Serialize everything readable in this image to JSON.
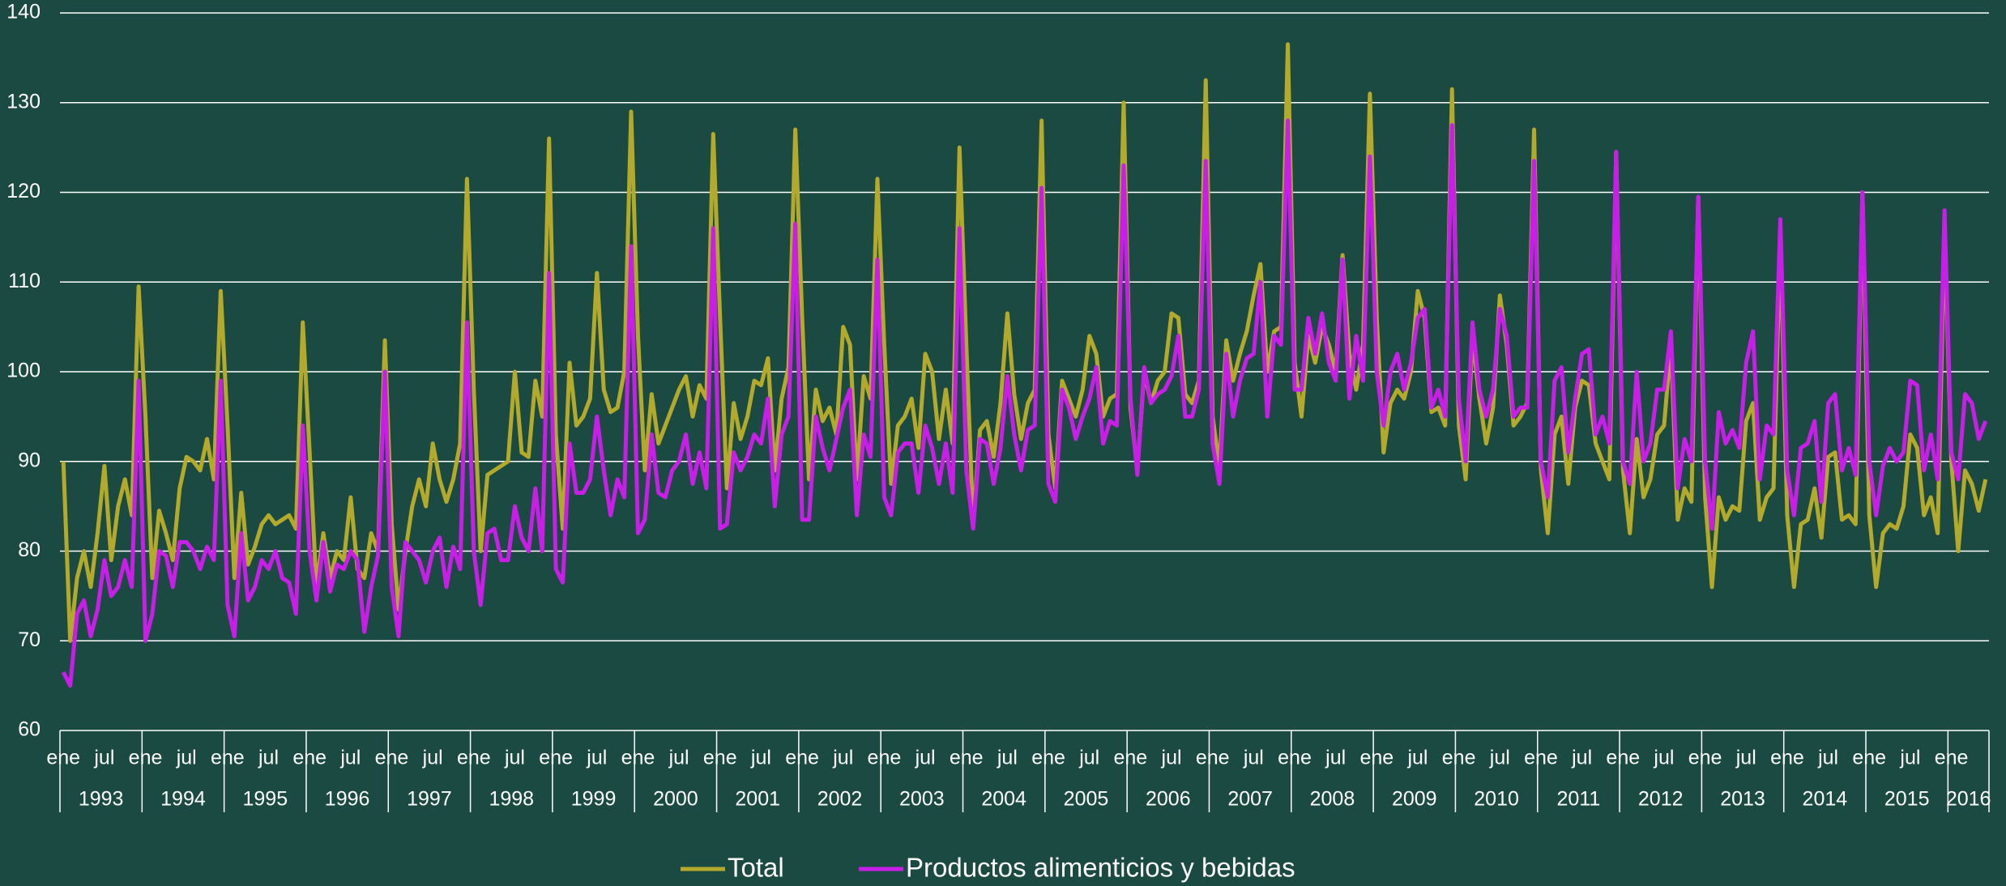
{
  "chart_data": {
    "type": "line",
    "categories": [
      "ene",
      null,
      null,
      null,
      null,
      null,
      "jul",
      null,
      null,
      null,
      null,
      null,
      "ene",
      null,
      null,
      null,
      null,
      null,
      "jul",
      null,
      null,
      null,
      null,
      null,
      "ene",
      null,
      null,
      null,
      null,
      null,
      "jul",
      null,
      null,
      null,
      null,
      null,
      "ene",
      null,
      null,
      null,
      null,
      null,
      "jul",
      null,
      null,
      null,
      null,
      null,
      "ene",
      null,
      null,
      null,
      null,
      null,
      "jul",
      null,
      null,
      null,
      null,
      null,
      "ene",
      null,
      null,
      null,
      null,
      null,
      "jul",
      null,
      null,
      null,
      null,
      null,
      "ene",
      null,
      null,
      null,
      null,
      null,
      "jul",
      null,
      null,
      null,
      null,
      null,
      "ene",
      null,
      null,
      null,
      null,
      null,
      "jul",
      null,
      null,
      null,
      null,
      null,
      "ene",
      null,
      null,
      null,
      null,
      null,
      "jul",
      null,
      null,
      null,
      null,
      null,
      "ene",
      null,
      null,
      null,
      null,
      null,
      "jul",
      null,
      null,
      null,
      null,
      null,
      "ene",
      null,
      null,
      null,
      null,
      null,
      "jul",
      null,
      null,
      null,
      null,
      null,
      "ene",
      null,
      null,
      null,
      null,
      null,
      "jul",
      null,
      null,
      null,
      null,
      null,
      "ene",
      null,
      null,
      null,
      null,
      null,
      "jul",
      null,
      null,
      null,
      null,
      null,
      "ene",
      null,
      null,
      null,
      null,
      null,
      "jul",
      null,
      null,
      null,
      null,
      null,
      "ene",
      null,
      null,
      null,
      null,
      null,
      "jul",
      null,
      null,
      null,
      null,
      null,
      "ene",
      null,
      null,
      null,
      null,
      null,
      "jul",
      null,
      null,
      null,
      null,
      null,
      "ene",
      null,
      null,
      null,
      null,
      null,
      "jul",
      null,
      null,
      null,
      null,
      null,
      "ene",
      null,
      null,
      null,
      null,
      null,
      "jul",
      null,
      null,
      null,
      null,
      null,
      "ene",
      null,
      null,
      null,
      null,
      null,
      "jul",
      null,
      null,
      null,
      null,
      null,
      "ene",
      null,
      null,
      null,
      null,
      null,
      "jul",
      null,
      null,
      null,
      null,
      null,
      "ene",
      null,
      null,
      null,
      null,
      null,
      "jul",
      null,
      null,
      null,
      null,
      null,
      "ene",
      null,
      null,
      null,
      null,
      null,
      "jul",
      null,
      null,
      null,
      null,
      null,
      "ene",
      null,
      null,
      null,
      null,
      null,
      "jul",
      null,
      null,
      null,
      null,
      null,
      "ene",
      null,
      null,
      null,
      null,
      null
    ],
    "year_labels": [
      "1993",
      "1994",
      "1995",
      "1996",
      "1997",
      "1998",
      "1999",
      "2000",
      "2001",
      "2002",
      "2003",
      "2004",
      "2005",
      "2006",
      "2007",
      "2008",
      "2009",
      "2010",
      "2011",
      "2012",
      "2013",
      "2014",
      "2015",
      "2016"
    ],
    "series": [
      {
        "name": "Total",
        "color": "#b3a92b",
        "values": [
          90,
          70,
          77,
          80,
          76,
          82,
          89.5,
          79,
          85,
          88,
          84,
          109.5,
          95,
          77,
          84.5,
          82,
          79,
          87,
          90.5,
          90,
          89,
          92.5,
          88,
          109,
          94,
          77,
          86.5,
          78.5,
          80.5,
          83,
          84,
          83,
          83.5,
          84,
          82.5,
          105.5,
          91,
          76,
          82,
          77,
          80,
          79,
          86,
          78,
          77,
          82,
          80,
          103.5,
          83,
          73.5,
          80,
          85,
          88,
          85,
          92,
          88,
          85.5,
          88,
          92,
          121.5,
          98,
          80,
          88.5,
          89,
          89.5,
          90,
          100,
          91,
          90.5,
          99,
          95,
          126,
          93,
          82.5,
          101,
          94,
          95,
          97,
          111,
          98,
          95.5,
          96,
          100,
          129,
          104,
          89,
          97.5,
          92,
          94,
          96,
          98,
          99.5,
          95,
          98.5,
          97,
          126.5,
          106,
          87,
          96.5,
          92.5,
          95,
          99,
          98.5,
          101.5,
          89,
          97,
          100.5,
          127,
          106,
          88,
          98,
          94.5,
          96,
          93,
          105,
          103,
          88,
          99.5,
          97,
          121.5,
          103,
          87.5,
          94,
          95,
          97,
          91.5,
          102,
          100,
          92.5,
          98,
          92,
          125,
          103,
          83,
          93.5,
          94.5,
          90.5,
          96.5,
          106.5,
          97.5,
          92.5,
          96.5,
          98,
          128,
          93,
          87,
          99,
          97,
          95,
          98,
          104,
          102,
          95,
          97,
          97.5,
          130,
          96,
          89,
          100,
          96.5,
          99,
          100,
          106.5,
          106,
          97.5,
          96.5,
          99,
          132.5,
          95,
          89.5,
          103.5,
          99,
          102,
          104.5,
          108.5,
          112,
          100,
          104.5,
          105,
          136.5,
          101,
          95,
          104,
          101,
          105,
          103,
          100,
          113,
          102,
          98,
          103,
          131,
          106,
          91,
          96.5,
          98,
          97,
          100,
          109,
          106,
          95.5,
          96,
          94,
          131.5,
          94,
          88,
          104,
          97,
          92,
          96,
          108.5,
          103,
          94,
          95,
          96.5,
          127,
          89,
          82,
          93,
          95,
          87.5,
          96,
          99,
          98.5,
          92,
          90,
          88,
          124.5,
          89,
          82,
          92.5,
          86,
          88,
          93,
          94,
          103,
          83.5,
          87,
          85.5,
          119.5,
          86,
          76,
          86,
          83.5,
          85,
          84.5,
          94.5,
          96.5,
          83.5,
          86,
          87,
          115,
          84,
          76,
          83,
          83.5,
          87,
          81.5,
          90.5,
          91,
          83.5,
          84,
          83,
          120,
          84,
          76,
          82,
          83,
          82.5,
          85,
          93,
          91.5,
          84,
          86,
          82,
          116,
          90,
          80,
          89,
          87.5,
          84.5,
          88
        ]
      },
      {
        "name": "Productos alimenticios y bebidas",
        "color": "#c81ee8",
        "values": [
          66.5,
          65,
          73,
          74.5,
          70.5,
          73.5,
          79,
          75,
          76,
          79,
          76,
          99,
          70,
          73,
          80,
          79.5,
          76,
          81,
          81,
          80,
          78,
          80.5,
          79,
          99,
          74,
          70.5,
          82,
          74.5,
          76,
          79,
          78,
          80,
          77,
          76.5,
          73,
          94,
          80,
          74.5,
          81,
          75.5,
          78.5,
          78,
          80,
          79,
          71,
          76,
          79.5,
          100,
          76,
          70.5,
          81,
          80,
          79,
          76.5,
          80,
          81.5,
          76,
          80.5,
          78,
          105.5,
          80,
          74,
          82,
          82.5,
          79,
          79,
          85,
          81.5,
          80,
          87,
          80,
          111,
          78,
          76.5,
          92,
          86.5,
          86.5,
          88,
          95,
          89,
          84,
          88,
          86,
          114,
          82,
          83.5,
          93,
          86.5,
          86,
          89,
          90,
          93,
          87.5,
          91,
          87,
          116,
          82.5,
          83,
          91,
          89,
          90.5,
          93,
          92,
          97,
          85,
          93,
          95,
          116.5,
          83.5,
          83.5,
          95,
          91.5,
          89,
          92.5,
          96,
          98,
          84,
          93,
          90.5,
          112.5,
          86,
          84,
          91,
          92,
          92,
          86.5,
          94,
          91.5,
          87.5,
          92,
          86.5,
          116,
          89,
          82.5,
          92.5,
          92,
          87.5,
          91.5,
          99.5,
          93,
          89,
          93.5,
          94,
          120.5,
          87.5,
          85.5,
          98,
          96,
          92.5,
          95,
          97,
          100.5,
          92,
          94.5,
          94,
          123,
          97,
          88.5,
          100.5,
          96.5,
          97.5,
          98,
          99.5,
          104,
          95,
          95,
          98,
          123.5,
          92,
          87.5,
          102,
          95,
          99,
          101.5,
          102,
          110,
          95,
          104,
          103,
          128,
          98,
          98,
          106,
          102,
          106.5,
          101,
          99,
          112.5,
          97,
          104,
          99,
          124,
          100,
          94,
          100,
          102,
          98,
          101,
          106,
          107,
          96,
          98,
          95,
          127.5,
          97,
          90,
          105.5,
          98,
          95,
          98,
          107,
          104,
          95,
          96,
          96,
          123.5,
          90,
          86,
          99,
          100.5,
          91,
          97,
          102,
          102.5,
          93,
          95,
          92,
          124.5,
          90,
          87.5,
          100,
          90,
          92,
          98,
          98,
          104.5,
          87,
          92.5,
          90,
          119.5,
          90,
          82.5,
          95.5,
          92,
          93.5,
          91.5,
          101,
          104.5,
          88,
          94,
          93,
          117,
          89,
          84,
          91.5,
          92,
          94.5,
          85.5,
          96.5,
          97.5,
          89,
          91.5,
          88.5,
          120,
          90,
          84,
          89.5,
          91.5,
          90,
          91,
          99,
          98.5,
          89,
          93,
          88,
          118,
          91,
          88,
          97.5,
          96.5,
          92.5,
          94.5
        ]
      }
    ],
    "ylim": [
      60,
      140
    ],
    "yticks": [
      60,
      70,
      80,
      90,
      100,
      110,
      120,
      130,
      140
    ],
    "grid": true
  }
}
